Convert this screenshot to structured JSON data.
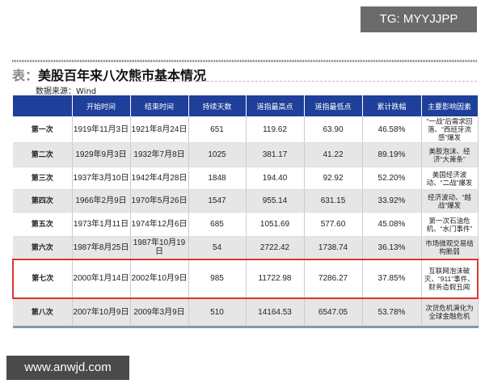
{
  "watermark_tg": "TG: MYYJJPP",
  "watermark_site": "www.anwjd.com",
  "title_prefix": "表：",
  "title": "美股百年来八次熊市基本情况",
  "source": "数据来源：Wind",
  "headers": [
    "",
    "开始时间",
    "结束时间",
    "持续天数",
    "道指最高点",
    "道指最低点",
    "累计跌幅",
    "主要影响因素"
  ],
  "rows": [
    [
      "第一次",
      "1919年11月3日",
      "1921年8月24日",
      "651",
      "119.62",
      "63.90",
      "46.58%",
      "“一战”后需求回落、“西班牙流感”爆发"
    ],
    [
      "第二次",
      "1929年9月3日",
      "1932年7月8日",
      "1025",
      "381.17",
      "41.22",
      "89.19%",
      "美股泡沫、经济“大萧条”"
    ],
    [
      "第三次",
      "1937年3月10日",
      "1942年4月28日",
      "1848",
      "194.40",
      "92.92",
      "52.20%",
      "美国经济波动、“二战”爆发"
    ],
    [
      "第四次",
      "1966年2月9日",
      "1970年5月26日",
      "1547",
      "955.14",
      "631.15",
      "33.92%",
      "经济波动、“越战”爆发"
    ],
    [
      "第五次",
      "1973年1月11日",
      "1974年12月6日",
      "685",
      "1051.69",
      "577.60",
      "45.08%",
      "第一次石油危机、“水门事件”"
    ],
    [
      "第六次",
      "1987年8月25日",
      "1987年10月19日",
      "54",
      "2722.42",
      "1738.74",
      "36.13%",
      "市场微观交易结构脆弱"
    ],
    [
      "第七次",
      "2000年1月14日",
      "2002年10月9日",
      "985",
      "11722.98",
      "7286.27",
      "37.85%",
      "互联网泡沫破灭、“911”事件、财务造假丑闻"
    ],
    [
      "第八次",
      "2007年10月9日",
      "2009年3月9日",
      "510",
      "14164.53",
      "6547.05",
      "53.78%",
      "次贷危机演化为全球金融危机"
    ]
  ],
  "highlight_row": 6,
  "colors": {
    "header": "#1e3f9a",
    "highlight": "#d33333",
    "stripe": "#e6e6e6"
  }
}
